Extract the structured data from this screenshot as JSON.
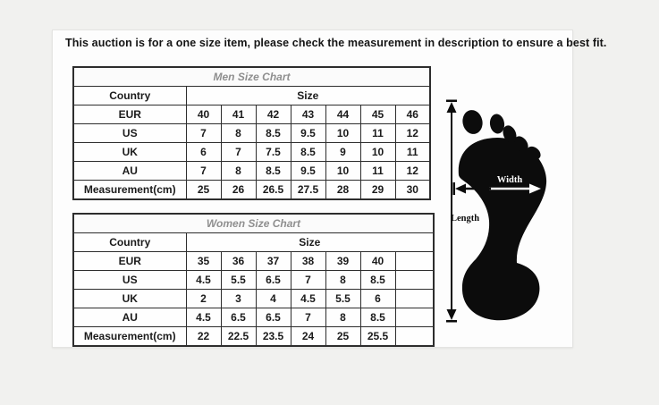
{
  "notice": "This auction is for a one size item, please check the measurement in description to ensure a best fit.",
  "colors": {
    "page_background": "#f1f1ef",
    "card_background": "#fdfdfd",
    "table_border": "#2d2d2d",
    "title_text": "#8f8f8f",
    "body_text": "#1b1b1b",
    "foot_silhouette": "#0c0c0c"
  },
  "tables": [
    {
      "title": "Men Size Chart",
      "country_header": "Country",
      "size_header": "Size",
      "trailing_empty_columns": 0,
      "rows": [
        {
          "label": "EUR",
          "values": [
            "40",
            "41",
            "42",
            "43",
            "44",
            "45",
            "46"
          ]
        },
        {
          "label": "US",
          "values": [
            "7",
            "8",
            "8.5",
            "9.5",
            "10",
            "11",
            "12"
          ]
        },
        {
          "label": "UK",
          "values": [
            "6",
            "7",
            "7.5",
            "8.5",
            "9",
            "10",
            "11"
          ]
        },
        {
          "label": "AU",
          "values": [
            "7",
            "8",
            "8.5",
            "9.5",
            "10",
            "11",
            "12"
          ]
        },
        {
          "label": "Measurement(cm)",
          "values": [
            "25",
            "26",
            "26.5",
            "27.5",
            "28",
            "29",
            "30"
          ]
        }
      ]
    },
    {
      "title": "Women Size Chart",
      "country_header": "Country",
      "size_header": "Size",
      "trailing_empty_columns": 1,
      "rows": [
        {
          "label": "EUR",
          "values": [
            "35",
            "36",
            "37",
            "38",
            "39",
            "40"
          ]
        },
        {
          "label": "US",
          "values": [
            "4.5",
            "5.5",
            "6.5",
            "7",
            "8",
            "8.5"
          ]
        },
        {
          "label": "UK",
          "values": [
            "2",
            "3",
            "4",
            "4.5",
            "5.5",
            "6"
          ]
        },
        {
          "label": "AU",
          "values": [
            "4.5",
            "6.5",
            "6.5",
            "7",
            "8",
            "8.5"
          ]
        },
        {
          "label": "Measurement(cm)",
          "values": [
            "22",
            "22.5",
            "23.5",
            "24",
            "25",
            "25.5"
          ]
        }
      ]
    }
  ],
  "foot_diagram": {
    "width_label": "Width",
    "length_label": "Length"
  }
}
